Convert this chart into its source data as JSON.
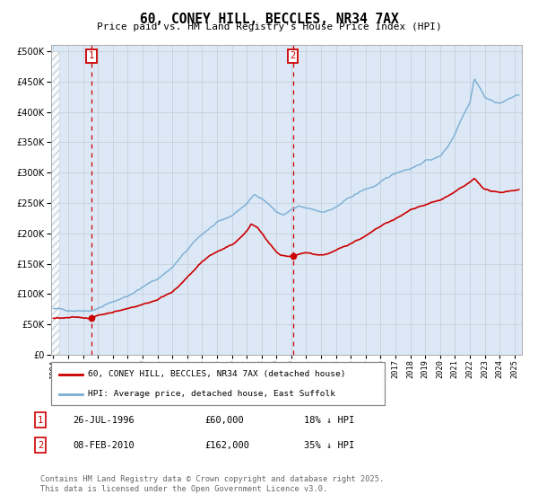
{
  "title": "60, CONEY HILL, BECCLES, NR34 7AX",
  "subtitle": "Price paid vs. HM Land Registry's House Price Index (HPI)",
  "ylim": [
    0,
    500000
  ],
  "yticks": [
    0,
    50000,
    100000,
    150000,
    200000,
    250000,
    300000,
    350000,
    400000,
    450000,
    500000
  ],
  "sale1_year": 1996.55,
  "sale1_price": 60000,
  "sale2_year": 2010.1,
  "sale2_price": 162000,
  "line1_label": "60, CONEY HILL, BECCLES, NR34 7AX (detached house)",
  "line2_label": "HPI: Average price, detached house, East Suffolk",
  "sale1_date": "26-JUL-1996",
  "sale1_amount": "£60,000",
  "sale1_hpi": "18% ↓ HPI",
  "sale2_date": "08-FEB-2010",
  "sale2_amount": "£162,000",
  "sale2_hpi": "35% ↓ HPI",
  "footer": "Contains HM Land Registry data © Crown copyright and database right 2025.\nThis data is licensed under the Open Government Licence v3.0.",
  "hpi_color": "#7aadd4",
  "sale_color": "#cc0000",
  "bg_color": "#dce8f5",
  "hatch_color": "#c0c8d0",
  "grid_color": "#c0ccd8"
}
